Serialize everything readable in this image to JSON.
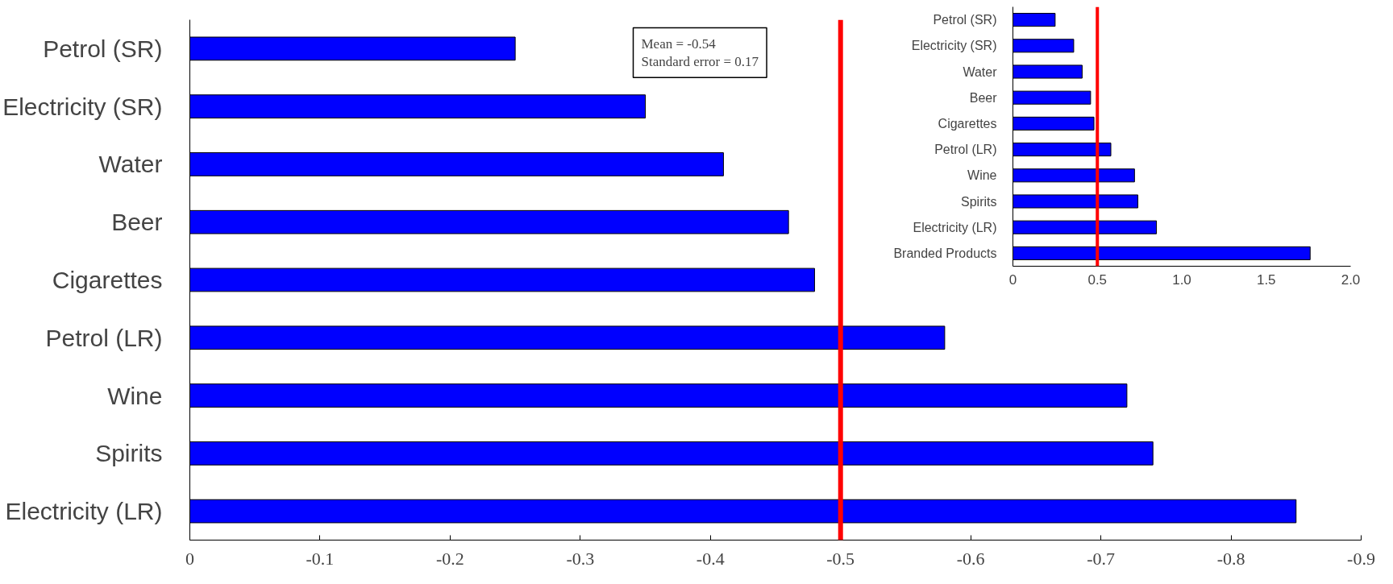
{
  "chart_data": [
    {
      "type": "bar",
      "orientation": "horizontal",
      "categories": [
        "Petrol (SR)",
        "Electricity (SR)",
        "Water",
        "Beer",
        "Cigarettes",
        "Petrol (LR)",
        "Wine",
        "Spirits",
        "Electricity (LR)"
      ],
      "values": [
        -0.25,
        -0.35,
        -0.41,
        -0.46,
        -0.48,
        -0.58,
        -0.72,
        -0.74,
        -0.85
      ],
      "color": "#0000ff",
      "xlim": [
        0,
        -0.9
      ],
      "xticks": [
        0,
        -0.1,
        -0.2,
        -0.3,
        -0.4,
        -0.5,
        -0.6,
        -0.7,
        -0.8,
        -0.9
      ],
      "ref_lines": [
        {
          "axis": "x",
          "value": -0.5,
          "color": "#ff0000"
        }
      ],
      "annotations": [
        "Mean = -0.54\nStandard error = 0.17"
      ],
      "grid": false
    },
    {
      "type": "bar",
      "orientation": "horizontal",
      "categories": [
        "Petrol (SR)",
        "Electricity (SR)",
        "Water",
        "Beer",
        "Cigarettes",
        "Petrol (LR)",
        "Wine",
        "Spirits",
        "Electricity (LR)",
        "Branded Products"
      ],
      "values": [
        0.25,
        0.36,
        0.41,
        0.46,
        0.48,
        0.58,
        0.72,
        0.74,
        0.85,
        1.76
      ],
      "color": "#0000ff",
      "xlim": [
        0,
        2
      ],
      "xticks": [
        0,
        0.5,
        {
          "value": 1,
          "label": "1.0"
        },
        1.5,
        {
          "value": 2,
          "label": "2.0"
        }
      ],
      "ref_lines": [
        {
          "axis": "x",
          "value": 0.5,
          "color": "#ff0000"
        }
      ],
      "grid": false
    }
  ]
}
